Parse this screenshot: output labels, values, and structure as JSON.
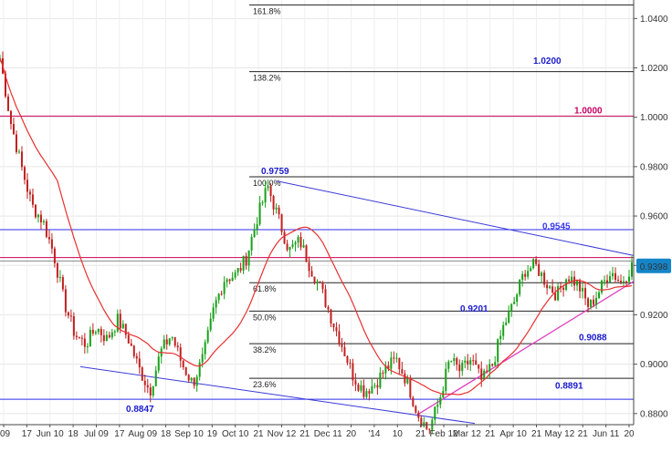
{
  "chart_data": {
    "type": "candlestick",
    "x_ticks": [
      "09",
      "17",
      "Jun 10",
      "18",
      "Jul 09",
      "17",
      "Aug 09",
      "18",
      "Sep 10",
      "19",
      "Oct 10",
      "21",
      "Nov 12",
      "21",
      "Dec 11",
      "20",
      "'14",
      "10",
      "21",
      "Feb 12",
      "Mar 12",
      "21",
      "Apr 10",
      "21",
      "May 12",
      "21",
      "Jun 11",
      "20"
    ],
    "y_ticks": [
      "0.8800",
      "0.9000",
      "0.9200",
      "0.9400",
      "0.9600",
      "0.9800",
      "1.0000",
      "1.0200",
      "1.0400"
    ],
    "ylim": [
      0.8755,
      1.0475
    ],
    "current_price": "0.9398",
    "price_labels": [
      {
        "text": "0.9759",
        "color": "#1a1acc"
      },
      {
        "text": "1.0200",
        "color": "#1a1acc"
      },
      {
        "text": "1.0000",
        "color": "#cc0066"
      },
      {
        "text": "0.9545",
        "color": "#3a3aee"
      },
      {
        "text": "0.9201",
        "color": "#1a1acc"
      },
      {
        "text": "0.9088",
        "color": "#1a1acc"
      },
      {
        "text": "0.8891",
        "color": "#1a1acc"
      },
      {
        "text": "0.8847",
        "color": "#1a1acc"
      }
    ],
    "fib_labels": [
      "161.8%",
      "138.2%",
      "100.0%",
      "61.8%",
      "50.0%",
      "38.2%",
      "23.6%"
    ],
    "fib_levels": [
      1.0455,
      1.0185,
      0.9759,
      0.933,
      0.9215,
      0.9083,
      0.8943
    ],
    "horizontal_levels": [
      {
        "y": 1.0005,
        "color": "#cc0055"
      },
      {
        "y": 0.9432,
        "color": "#cc0055"
      },
      {
        "y": 0.9545,
        "color": "#2e2eee"
      },
      {
        "y": 0.8858,
        "color": "#2e2eee"
      },
      {
        "y": 0.9418,
        "color": "#888888"
      }
    ],
    "close_series": [
      1.024,
      0.998,
      0.98,
      0.964,
      0.958,
      0.945,
      0.925,
      0.912,
      0.908,
      0.915,
      0.91,
      0.918,
      0.91,
      0.898,
      0.889,
      0.905,
      0.912,
      0.9,
      0.892,
      0.903,
      0.923,
      0.935,
      0.936,
      0.943,
      0.959,
      0.972,
      0.959,
      0.946,
      0.95,
      0.939,
      0.93,
      0.918,
      0.907,
      0.895,
      0.889,
      0.892,
      0.898,
      0.902,
      0.893,
      0.88,
      0.873,
      0.885,
      0.902,
      0.897,
      0.902,
      0.893,
      0.9,
      0.915,
      0.925,
      0.938,
      0.94,
      0.933,
      0.928,
      0.936,
      0.932,
      0.923,
      0.93,
      0.938,
      0.933,
      0.9398
    ],
    "moving_average_color": "#e83030",
    "candle_up_color": "#18a018",
    "candle_down_color": "#c02020",
    "trendline_color": "#3a3ad8",
    "support_line_color": "#e040c0",
    "current_price_badge_color": "#1585c8"
  }
}
